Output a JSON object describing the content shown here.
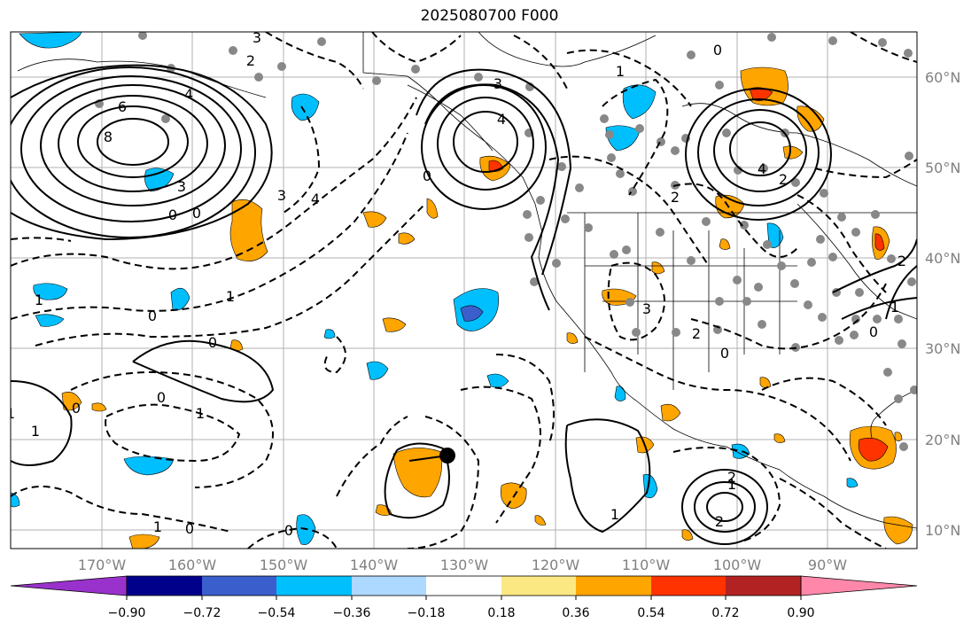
{
  "title": "2025080700 F000",
  "longitude_ticks": [
    "170°W",
    "160°W",
    "150°W",
    "140°W",
    "130°W",
    "120°W",
    "110°W",
    "100°W",
    "90°W"
  ],
  "latitude_ticks": [
    "60°N",
    "50°N",
    "40°N",
    "30°N",
    "20°N",
    "10°N"
  ],
  "colorbar": {
    "tick_labels": [
      "−0.90",
      "−0.72",
      "−0.54",
      "−0.36",
      "−0.18",
      "0.18",
      "0.36",
      "0.54",
      "0.72",
      "0.90"
    ],
    "colors": [
      "#9932cc",
      "#00008b",
      "#3a5fcd",
      "#00bfff",
      "#add8ff",
      "#ffffff",
      "#fce883",
      "#ffa500",
      "#ff3300",
      "#b22222",
      "#ff88aa"
    ]
  },
  "contour_labels": [
    {
      "text": "6"
    },
    {
      "text": "4"
    },
    {
      "text": "8"
    },
    {
      "text": "3"
    },
    {
      "text": "2"
    },
    {
      "text": "0"
    },
    {
      "text": "0"
    },
    {
      "text": "4"
    },
    {
      "text": "3"
    },
    {
      "text": "3"
    },
    {
      "text": "4"
    },
    {
      "text": "3"
    },
    {
      "text": "4"
    },
    {
      "text": "2"
    },
    {
      "text": "0"
    },
    {
      "text": "1"
    },
    {
      "text": "1"
    },
    {
      "text": "0"
    },
    {
      "text": "0"
    },
    {
      "text": "0"
    },
    {
      "text": "1"
    },
    {
      "text": "1"
    },
    {
      "text": "0"
    },
    {
      "text": "0"
    },
    {
      "text": "0"
    },
    {
      "text": "1"
    },
    {
      "text": "1"
    },
    {
      "text": "2"
    },
    {
      "text": "3"
    },
    {
      "text": "0"
    },
    {
      "text": "2"
    },
    {
      "text": "1"
    },
    {
      "text": "0"
    },
    {
      "text": "2"
    },
    {
      "text": "2"
    },
    {
      "text": "1"
    },
    {
      "text": "0"
    },
    {
      "text": "2"
    },
    {
      "text": "1"
    },
    {
      "text": "1"
    }
  ]
}
